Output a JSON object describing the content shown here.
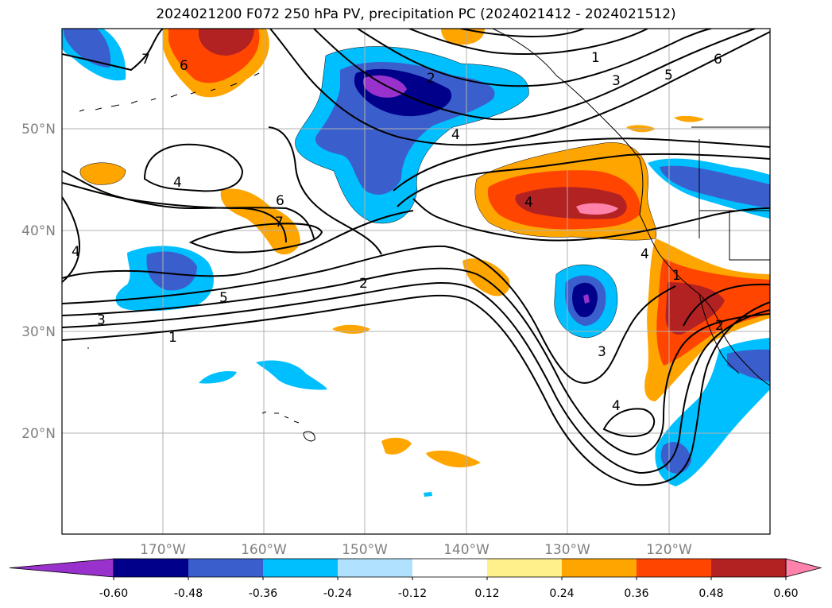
{
  "title": "2024021200 F072 250 hPa PV, precipitation PC (2024021412 - 2024021512)",
  "lat_labels": [
    "50°N",
    "40°N",
    "30°N",
    "20°N"
  ],
  "lon_labels": [
    "170°W",
    "160°W",
    "150°W",
    "140°W",
    "130°W",
    "120°W"
  ],
  "contour_labels": [
    "1",
    "2",
    "3",
    "4",
    "5",
    "6",
    "7"
  ],
  "colorbar": {
    "colors": [
      "#9932cc",
      "#00008b",
      "#3a5fcd",
      "#00bfff",
      "#b0e2ff",
      "#ffffff",
      "#fff08c",
      "#ffa500",
      "#ff4500",
      "#b22222",
      "#ff82ab"
    ],
    "ticks": [
      "-0.60",
      "-0.48",
      "-0.36",
      "-0.24",
      "-0.12",
      "0.12",
      "0.24",
      "0.36",
      "0.48",
      "0.60"
    ]
  },
  "legend_placement": "bottom"
}
